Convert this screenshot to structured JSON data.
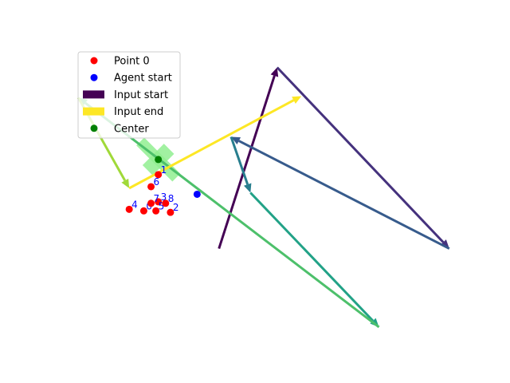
{
  "chart_data": {
    "type": "scatter",
    "title": "",
    "xlabel": "",
    "ylabel": "",
    "axes_visible": false,
    "grid": false,
    "colormap": "viridis",
    "xlim": [
      -0.63,
      1.0
    ],
    "ylim": [
      -0.95,
      1.0
    ],
    "legend": {
      "placement": "top-left",
      "entries": [
        {
          "label": "Point 0",
          "marker": "dot",
          "color": "#ff0000"
        },
        {
          "label": "Agent start",
          "marker": "dot",
          "color": "#0000ff"
        },
        {
          "label": "Input start",
          "marker": "bar",
          "color": "#440154"
        },
        {
          "label": "Input end",
          "marker": "bar",
          "color": "#fde725"
        },
        {
          "label": "Center",
          "marker": "dot",
          "color": "#008000"
        }
      ]
    },
    "points": [
      {
        "label": "0",
        "x": -0.3,
        "y": -0.09
      },
      {
        "label": "1",
        "x": -0.24,
        "y": 0.15
      },
      {
        "label": "2",
        "x": -0.19,
        "y": -0.1
      },
      {
        "label": "3",
        "x": -0.24,
        "y": -0.03
      },
      {
        "label": "4",
        "x": -0.36,
        "y": -0.08
      },
      {
        "label": "5",
        "x": -0.25,
        "y": -0.09
      },
      {
        "label": "6",
        "x": -0.27,
        "y": 0.07
      },
      {
        "label": "7",
        "x": -0.27,
        "y": -0.04
      },
      {
        "label": "8",
        "x": -0.21,
        "y": -0.04
      }
    ],
    "agent_start": {
      "x": -0.08,
      "y": 0.02
    },
    "center": {
      "x": -0.24,
      "y": 0.25
    },
    "center_marker": {
      "color": "#90ee90",
      "angle_deg": 45
    },
    "input_path": [
      {
        "x": 0.01,
        "y": -0.34
      },
      {
        "x": 0.25,
        "y": 0.86
      },
      {
        "x": 0.96,
        "y": -0.34
      },
      {
        "x": 0.06,
        "y": 0.4
      },
      {
        "x": 0.14,
        "y": 0.03
      },
      {
        "x": 0.67,
        "y": -0.86
      },
      {
        "x": -0.57,
        "y": 0.66
      },
      {
        "x": -0.36,
        "y": 0.06
      },
      {
        "x": 0.35,
        "y": 0.67
      }
    ]
  }
}
